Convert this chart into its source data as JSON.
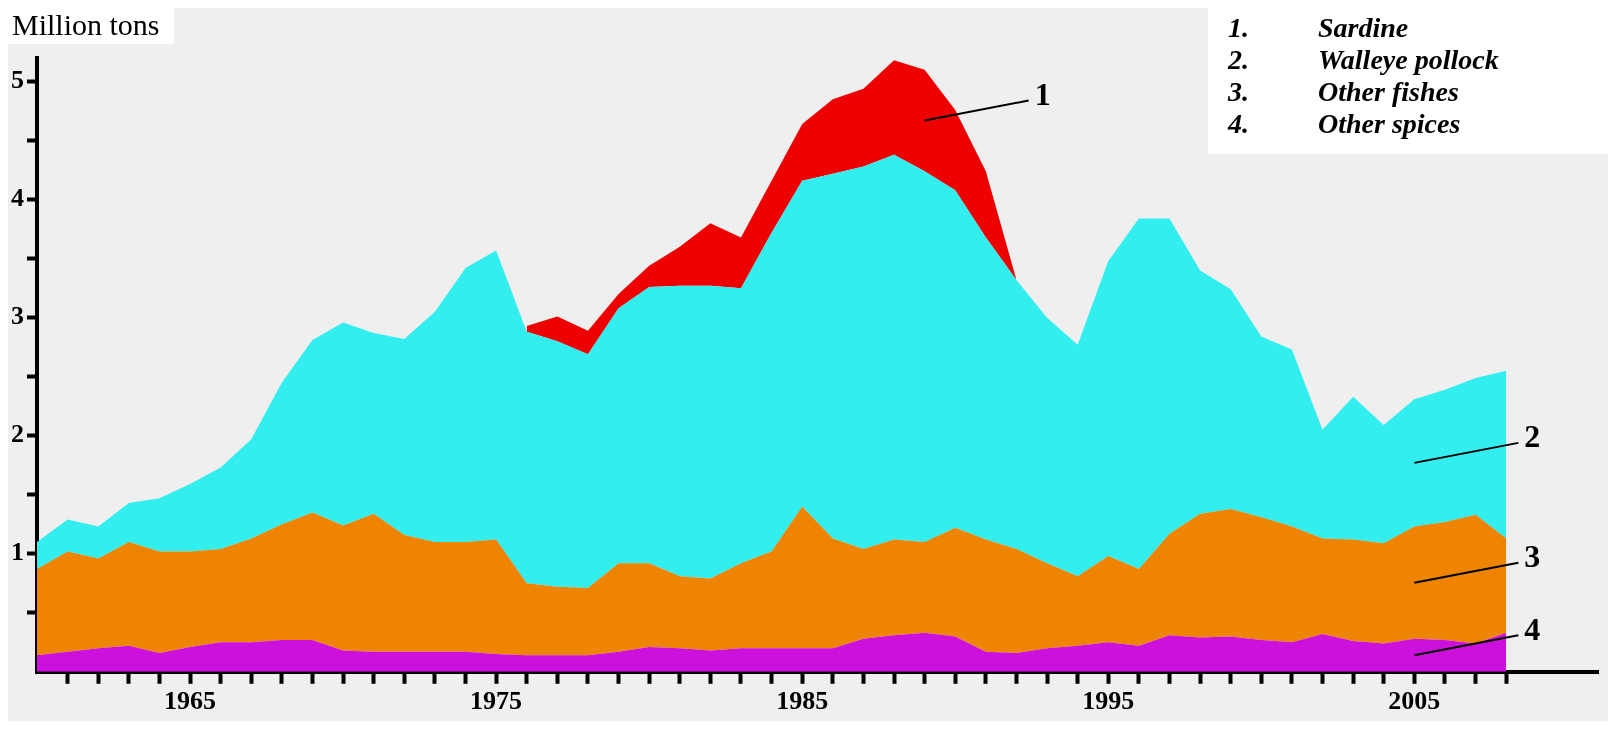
{
  "chart_data": {
    "type": "area",
    "ylabel": "Million tons",
    "stacked": true,
    "marker": "none",
    "x": [
      1960,
      1961,
      1962,
      1963,
      1964,
      1965,
      1966,
      1967,
      1968,
      1969,
      1970,
      1971,
      1972,
      1973,
      1974,
      1975,
      1976,
      1977,
      1978,
      1979,
      1980,
      1981,
      1982,
      1983,
      1984,
      1985,
      1986,
      1987,
      1988,
      1989,
      1990,
      1991,
      1992,
      1993,
      1994,
      1995,
      1996,
      1997,
      1998,
      1999,
      2000,
      2001,
      2002,
      2003,
      2004,
      2005,
      2006,
      2007,
      2008
    ],
    "series": [
      {
        "name": "4. Other spices",
        "color": "#cc11dd",
        "values": [
          0.14,
          0.17,
          0.2,
          0.22,
          0.16,
          0.21,
          0.25,
          0.25,
          0.27,
          0.27,
          0.18,
          0.17,
          0.17,
          0.17,
          0.17,
          0.15,
          0.14,
          0.14,
          0.14,
          0.17,
          0.21,
          0.2,
          0.18,
          0.2,
          0.2,
          0.2,
          0.2,
          0.28,
          0.31,
          0.33,
          0.3,
          0.17,
          0.16,
          0.2,
          0.22,
          0.25,
          0.22,
          0.31,
          0.29,
          0.3,
          0.27,
          0.25,
          0.32,
          0.26,
          0.24,
          0.28,
          0.27,
          0.24,
          0.33
        ]
      },
      {
        "name": "3. Other fishes",
        "color": "#ee8400",
        "values": [
          0.73,
          0.85,
          0.76,
          0.88,
          0.86,
          0.81,
          0.79,
          0.88,
          0.98,
          1.08,
          1.06,
          1.17,
          0.99,
          0.93,
          0.93,
          0.97,
          0.61,
          0.58,
          0.57,
          0.75,
          0.71,
          0.61,
          0.61,
          0.72,
          0.82,
          1.2,
          0.93,
          0.76,
          0.81,
          0.77,
          0.92,
          0.95,
          0.88,
          0.72,
          0.59,
          0.73,
          0.65,
          0.86,
          1.05,
          1.08,
          1.04,
          0.98,
          0.81,
          0.86,
          0.85,
          0.95,
          1.0,
          1.09,
          0.8
        ]
      },
      {
        "name": "2. Walleye pollock",
        "color": "#33eeee",
        "values": [
          0.23,
          0.27,
          0.27,
          0.33,
          0.45,
          0.57,
          0.69,
          0.84,
          1.2,
          1.46,
          1.72,
          1.53,
          1.66,
          1.95,
          2.32,
          2.45,
          2.13,
          2.08,
          1.98,
          2.16,
          2.34,
          2.46,
          2.48,
          2.33,
          2.7,
          2.76,
          3.09,
          3.24,
          3.26,
          3.14,
          2.86,
          2.56,
          2.28,
          2.08,
          1.96,
          2.5,
          2.97,
          2.67,
          2.06,
          1.86,
          1.53,
          1.5,
          0.92,
          1.21,
          1.0,
          1.08,
          1.12,
          1.16,
          1.42
        ]
      },
      {
        "name": "1. Sardine",
        "color": "#ee0000",
        "values": [
          null,
          null,
          null,
          null,
          null,
          null,
          null,
          null,
          null,
          null,
          null,
          null,
          null,
          null,
          null,
          null,
          0.05,
          0.21,
          0.2,
          0.12,
          0.18,
          0.33,
          0.53,
          0.43,
          0.44,
          0.48,
          0.63,
          0.66,
          0.8,
          0.86,
          0.68,
          0.56,
          0,
          null,
          null,
          null,
          null,
          null,
          null,
          null,
          null,
          null,
          null,
          null,
          null,
          null,
          null,
          null,
          null
        ]
      }
    ],
    "xlim": [
      1960,
      2011
    ],
    "xticks": [
      {
        "value": 1961,
        "label": null
      },
      {
        "value": 1962,
        "label": null
      },
      {
        "value": 1963,
        "label": null
      },
      {
        "value": 1964,
        "label": null
      },
      1965,
      {
        "value": 1966,
        "label": null
      },
      {
        "value": 1967,
        "label": null
      },
      {
        "value": 1968,
        "label": null
      },
      {
        "value": 1969,
        "label": null
      },
      {
        "value": 1970,
        "label": null
      },
      {
        "value": 1971,
        "label": null
      },
      {
        "value": 1972,
        "label": null
      },
      {
        "value": 1973,
        "label": null
      },
      {
        "value": 1974,
        "label": null
      },
      1975,
      {
        "value": 1976,
        "label": null
      },
      {
        "value": 1977,
        "label": null
      },
      {
        "value": 1978,
        "label": null
      },
      {
        "value": 1979,
        "label": null
      },
      {
        "value": 1980,
        "label": null
      },
      {
        "value": 1981,
        "label": null
      },
      {
        "value": 1982,
        "label": null
      },
      {
        "value": 1983,
        "label": null
      },
      {
        "value": 1984,
        "label": null
      },
      1985,
      {
        "value": 1986,
        "label": null
      },
      {
        "value": 1987,
        "label": null
      },
      {
        "value": 1988,
        "label": null
      },
      {
        "value": 1989,
        "label": null
      },
      {
        "value": 1990,
        "label": null
      },
      {
        "value": 1991,
        "label": null
      },
      {
        "value": 1992,
        "label": null
      },
      {
        "value": 1993,
        "label": null
      },
      {
        "value": 1994,
        "label": null
      },
      1995,
      {
        "value": 1996,
        "label": null
      },
      {
        "value": 1997,
        "label": null
      },
      {
        "value": 1998,
        "label": null
      },
      {
        "value": 1999,
        "label": null
      },
      {
        "value": 2000,
        "label": null
      },
      {
        "value": 2001,
        "label": null
      },
      {
        "value": 2002,
        "label": null
      },
      {
        "value": 2003,
        "label": null
      },
      {
        "value": 2004,
        "label": null
      },
      2005,
      {
        "value": 2006,
        "label": null
      },
      {
        "value": 2007,
        "label": null
      },
      {
        "value": 2008,
        "label": null
      }
    ],
    "ylim": [
      0,
      5.2
    ],
    "yticks": [
      {
        "value": 0.5,
        "label": null
      },
      1,
      {
        "value": 1.5,
        "label": null
      },
      2,
      {
        "value": 2.5,
        "label": null
      },
      3,
      {
        "value": 3.5,
        "label": null
      },
      4,
      {
        "value": 4.5,
        "label": null
      },
      5
    ],
    "annotations": [
      "1",
      "2",
      "3",
      "4"
    ]
  }
}
